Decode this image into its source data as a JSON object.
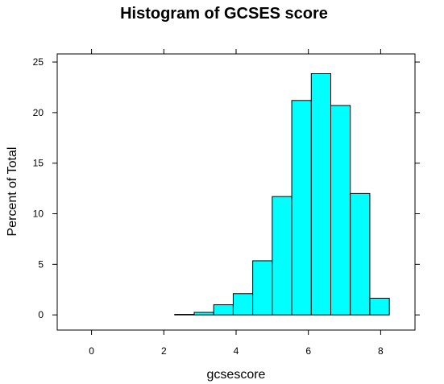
{
  "chart_data": {
    "type": "bar",
    "title": "Histogram of GCSES score",
    "xlabel": "gcsescore",
    "ylabel": "Percent of Total",
    "xlim": [
      -0.95,
      8.95
    ],
    "ylim": [
      -1.5,
      25.8
    ],
    "x_ticks": [
      0,
      2,
      4,
      6,
      8
    ],
    "y_ticks": [
      0,
      5,
      10,
      15,
      20,
      25
    ],
    "bin_edges": [
      -0.4,
      0.14,
      0.68,
      1.22,
      1.76,
      2.3,
      2.84,
      3.38,
      3.92,
      4.46,
      5.0,
      5.54,
      6.08,
      6.62,
      7.16,
      7.7,
      8.24
    ],
    "values": [
      0,
      0,
      0,
      0,
      0,
      0.05,
      0.25,
      1.0,
      2.1,
      5.35,
      11.7,
      21.2,
      23.85,
      20.7,
      12.0,
      1.65
    ],
    "bar_color": "#00ffff",
    "bar_edge_color": "#000000",
    "grid": false,
    "legend": "none"
  }
}
